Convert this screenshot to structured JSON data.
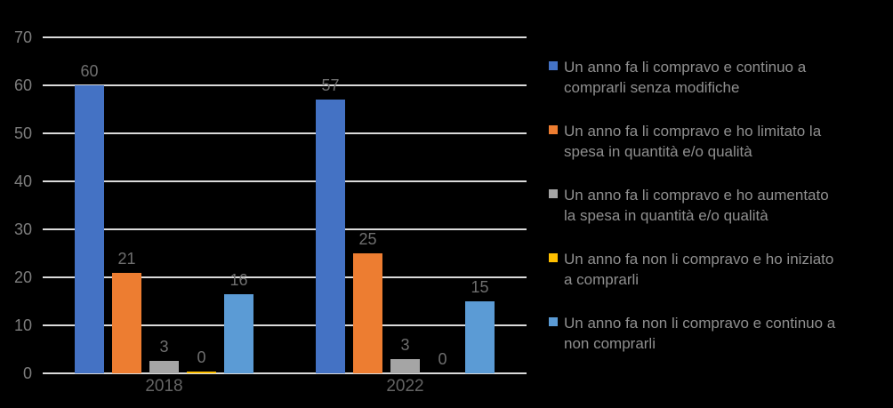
{
  "chart_data": {
    "type": "bar",
    "title": "",
    "categories": [
      "2018",
      "2022"
    ],
    "series": [
      {
        "name": "Un anno fa li compravo e continuo a comprarli senza modifiche",
        "color": "#4472C4",
        "values": [
          60,
          57
        ],
        "render_values": [
          60,
          57
        ],
        "legend_lines": [
          "Un anno fa li compravo e continuo a",
          "comprarli senza modifiche"
        ]
      },
      {
        "name": "Un anno fa li compravo e ho limitato la spesa in quantità e/o qualità",
        "color": "#ED7D31",
        "values": [
          21,
          25
        ],
        "render_values": [
          21,
          25
        ],
        "legend_lines": [
          "Un anno fa li compravo e ho limitato la",
          "spesa in quantità e/o qualità"
        ]
      },
      {
        "name": "Un anno fa li compravo e ho aumentato la spesa in quantità e/o qualità",
        "color": "#A5A5A5",
        "values": [
          3,
          3
        ],
        "render_values": [
          2.5,
          3
        ],
        "legend_lines": [
          "Un anno fa li compravo e ho aumentato",
          "la spesa in quantità e/o qualità"
        ]
      },
      {
        "name": "Un anno fa non li compravo e ho iniziato a comprarli",
        "color": "#FFC000",
        "values": [
          0,
          0
        ],
        "render_values": [
          0.3,
          0
        ],
        "legend_lines": [
          "Un anno fa non li compravo e ho iniziato",
          "a comprarli"
        ]
      },
      {
        "name": "Un anno fa non li compravo e continuo a non comprarli",
        "color": "#5B9BD5",
        "values": [
          16,
          15
        ],
        "render_values": [
          16.5,
          15
        ],
        "legend_lines": [
          "Un anno fa non li compravo e continuo a",
          "non comprarli"
        ]
      }
    ],
    "ylim": [
      0,
      70
    ],
    "yticks": [
      0,
      10,
      20,
      30,
      40,
      50,
      60,
      70
    ],
    "grid": true,
    "data_labels": true,
    "legend_position": "right",
    "xlabel": "",
    "ylabel": ""
  },
  "colors": {
    "background": "#000000",
    "gridline": "#DBDBDB",
    "tick_label": "#7D7D7D",
    "data_label": "#6F6F6F",
    "category_label": "#646464",
    "legend_text": "#8F8F8F"
  }
}
